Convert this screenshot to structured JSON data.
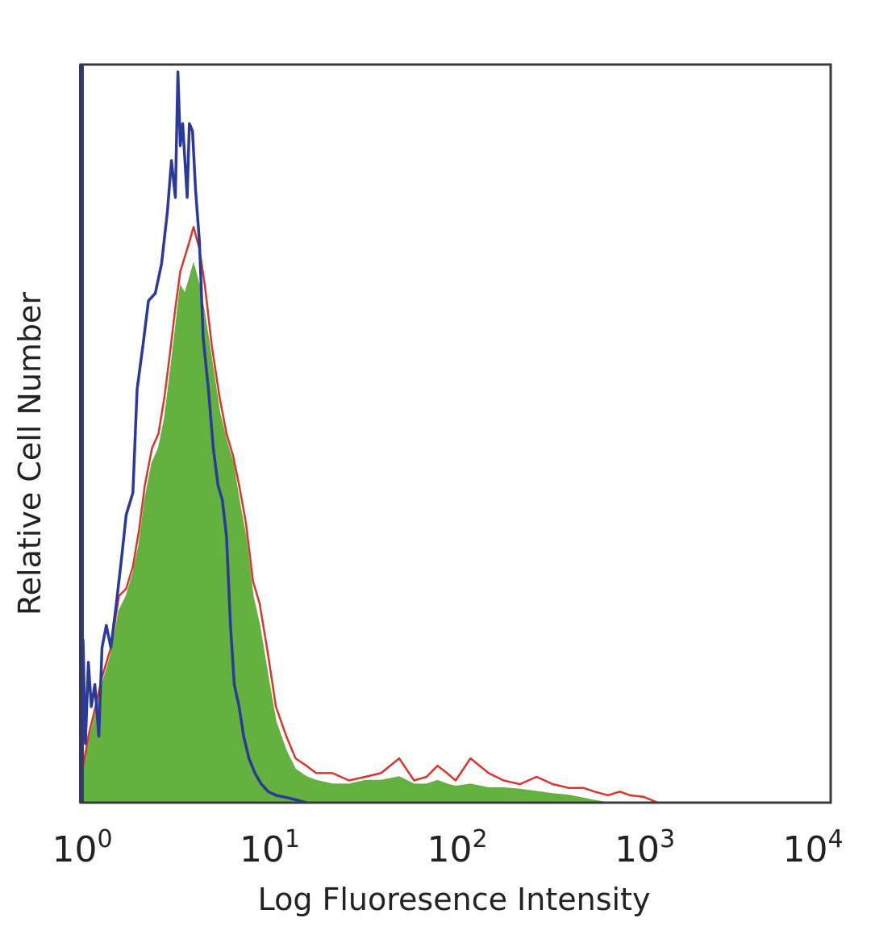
{
  "chart_data": {
    "type": "area",
    "title": "",
    "xlabel": "Log Fluoresence Intensity",
    "ylabel": "Relative Cell Number",
    "x_scale": "log",
    "xlim": [
      1,
      10000
    ],
    "ylim": [
      0,
      100
    ],
    "grid": false,
    "y_ticks_visible": false,
    "x_ticks": [
      {
        "base": "10",
        "exp": "0",
        "value": 1
      },
      {
        "base": "10",
        "exp": "1",
        "value": 10
      },
      {
        "base": "10",
        "exp": "2",
        "value": 100
      },
      {
        "base": "10",
        "exp": "3",
        "value": 1000
      },
      {
        "base": "10",
        "exp": "4",
        "value": 10000
      }
    ],
    "series": [
      {
        "style": "outline",
        "color": "#2b3a9a",
        "x": [
          1.0,
          1.03,
          1.06,
          1.1,
          1.14,
          1.19,
          1.25,
          1.3,
          1.37,
          1.45,
          1.55,
          1.65,
          1.75,
          1.9,
          2.0,
          2.15,
          2.3,
          2.5,
          2.7,
          2.9,
          3.05,
          3.2,
          3.3,
          3.4,
          3.5,
          3.6,
          3.7,
          3.8,
          3.95,
          4.1,
          4.3,
          4.5,
          4.8,
          5.1,
          5.4,
          5.7,
          6.0,
          6.3,
          6.6,
          7.0,
          7.4,
          7.9,
          8.5,
          9.2,
          10.0,
          11.0,
          12.0,
          13.0,
          14.0,
          15.0,
          16.0
        ],
        "y": [
          10,
          22,
          8,
          19,
          13,
          16,
          9,
          21,
          24,
          21,
          27,
          33,
          39,
          42,
          56,
          62,
          68,
          69,
          73,
          80,
          87,
          82,
          99,
          89,
          92,
          87,
          82,
          92,
          91,
          83,
          76,
          63,
          56,
          48,
          43,
          41,
          36,
          24,
          16,
          13,
          9,
          6,
          4,
          2.5,
          1.5,
          1,
          0.8,
          0.6,
          0.4,
          0.2,
          0
        ]
      },
      {
        "style": "outline",
        "color": "#d9352b",
        "x": [
          1.0,
          1.1,
          1.2,
          1.3,
          1.45,
          1.6,
          1.75,
          1.9,
          2.05,
          2.2,
          2.4,
          2.6,
          2.8,
          3.0,
          3.2,
          3.4,
          3.6,
          3.8,
          4.0,
          4.3,
          4.6,
          5.0,
          5.5,
          6.0,
          6.5,
          7.0,
          7.6,
          8.3,
          9.0,
          10.0,
          11.0,
          12.5,
          14.0,
          16.0,
          18.0,
          22.0,
          27.0,
          33.0,
          40.0,
          50.0,
          60.0,
          70.0,
          80.0,
          90.0,
          100.0,
          120.0,
          150.0,
          180.0,
          220.0,
          270.0,
          330.0,
          400.0,
          480.0,
          550.0,
          650.0,
          750.0,
          850.0,
          1000.0,
          1200.0
        ],
        "y": [
          3,
          9,
          13,
          17,
          21,
          28,
          29,
          32,
          37,
          43,
          48,
          50,
          55,
          61,
          67,
          72,
          74,
          76,
          78,
          75,
          70,
          62,
          55,
          50,
          47,
          43,
          38,
          30,
          27,
          20,
          13,
          9,
          6,
          5,
          4,
          4,
          3,
          3.5,
          4,
          6,
          3,
          3.5,
          5,
          4,
          3,
          6,
          4,
          3,
          2.5,
          3.5,
          2.5,
          2,
          2,
          1.5,
          1,
          1.5,
          1,
          0.8,
          0
        ]
      },
      {
        "style": "filled",
        "color": "#64b13f",
        "x": [
          1.0,
          1.1,
          1.2,
          1.3,
          1.45,
          1.6,
          1.75,
          1.9,
          2.05,
          2.2,
          2.4,
          2.6,
          2.8,
          3.0,
          3.2,
          3.4,
          3.6,
          3.8,
          4.0,
          4.3,
          4.6,
          5.0,
          5.5,
          6.0,
          6.5,
          7.0,
          7.6,
          8.3,
          9.0,
          10.0,
          11.0,
          12.5,
          14.0,
          16.0,
          18.0,
          22.0,
          27.0,
          33.0,
          40.0,
          50.0,
          60.0,
          70.0,
          80.0,
          90.0,
          100.0,
          120.0,
          150.0,
          180.0,
          220.0,
          270.0,
          330.0,
          400.0,
          480.0,
          550.0,
          650.0
        ],
        "y": [
          2,
          8,
          12,
          16,
          20,
          26,
          28,
          31,
          35,
          41,
          46,
          48,
          52,
          58,
          64,
          70,
          69,
          71,
          73,
          70,
          66,
          60,
          53,
          49,
          46,
          41,
          36,
          28,
          24,
          17,
          11,
          7,
          4.5,
          3.5,
          3,
          2.5,
          2.5,
          3,
          3,
          3.5,
          2.5,
          2.5,
          3,
          2.5,
          2.2,
          2.5,
          2,
          2,
          1.8,
          1.5,
          1.2,
          1,
          0.6,
          0.3,
          0
        ]
      }
    ]
  }
}
